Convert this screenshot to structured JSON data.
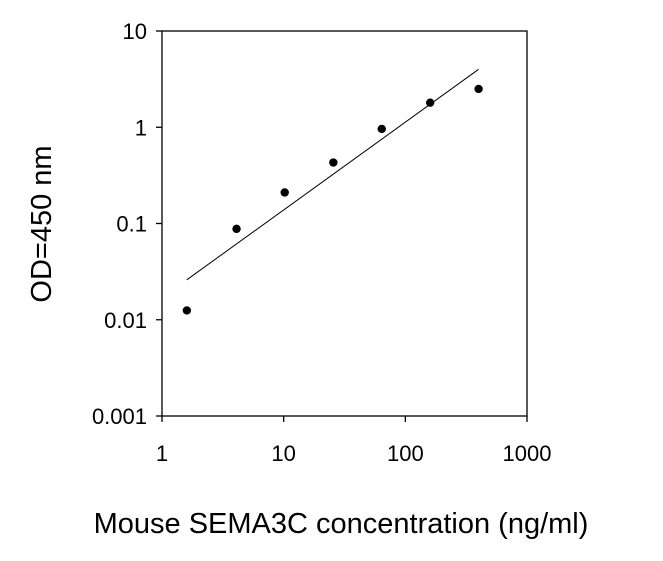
{
  "chart_data": {
    "type": "scatter",
    "title": "",
    "xlabel": "Mouse SEMA3C concentration (ng/ml)",
    "ylabel": "OD=450 nm",
    "x_scale": "log",
    "y_scale": "log",
    "xlim": [
      1,
      1000
    ],
    "ylim": [
      0.001,
      10
    ],
    "x_ticks": [
      "1",
      "10",
      "100",
      "1000"
    ],
    "y_ticks": [
      "0.001",
      "0.01",
      "0.1",
      "1",
      "10"
    ],
    "grid": false,
    "legend": "none",
    "series": [
      {
        "type": "scatter",
        "x": [
          1.6,
          4.1,
          10.2,
          25.6,
          64,
          160,
          400
        ],
        "y": [
          0.0125,
          0.088,
          0.21,
          0.43,
          0.96,
          1.8,
          2.5
        ]
      },
      {
        "type": "line",
        "x": [
          1.6,
          400
        ],
        "y": [
          0.026,
          4.0
        ]
      }
    ],
    "colors": {
      "points": "#000000",
      "fit_line": "#000000",
      "axis": "#000000"
    }
  }
}
